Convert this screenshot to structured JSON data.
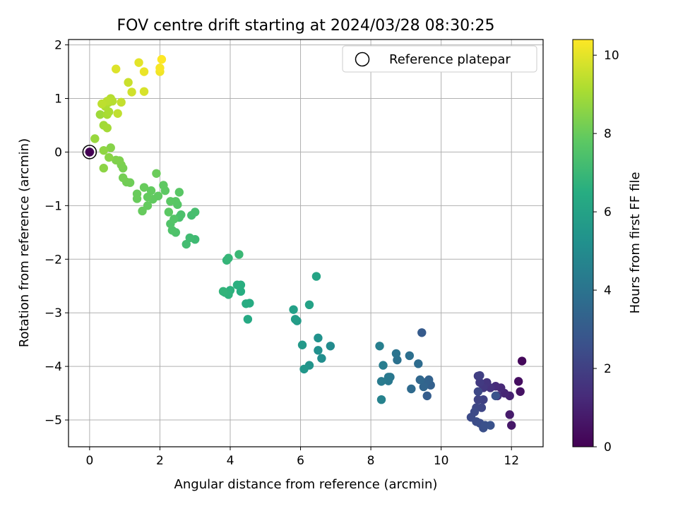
{
  "chart_data": {
    "type": "scatter",
    "title": "FOV centre drift starting at 2024/03/28 08:30:25",
    "xlabel": "Angular distance from reference (arcmin)",
    "ylabel": "Rotation from reference (arcmin)",
    "xlim": [
      -0.6,
      12.9
    ],
    "ylim": [
      -5.5,
      2.1
    ],
    "xticks": [
      0,
      2,
      4,
      6,
      8,
      10,
      12
    ],
    "yticks": [
      -5,
      -4,
      -3,
      -2,
      -1,
      0,
      1,
      2
    ],
    "grid": true,
    "legend": {
      "position": "top-right",
      "entries": [
        "Reference platepar"
      ]
    },
    "colorbar": {
      "label": "Hours from first FF file",
      "range": [
        0,
        10.4
      ],
      "ticks": [
        0,
        2,
        4,
        6,
        8,
        10
      ],
      "colormap": "viridis"
    },
    "reference_point": {
      "x": 0,
      "y": 0,
      "hours": 0
    },
    "points": [
      [
        0.0,
        0.0,
        0.0
      ],
      [
        12.3,
        -3.9,
        0.2
      ],
      [
        12.2,
        -4.28,
        0.4
      ],
      [
        12.25,
        -4.47,
        0.5
      ],
      [
        12.0,
        -5.1,
        0.7
      ],
      [
        11.95,
        -4.9,
        0.8
      ],
      [
        11.95,
        -4.55,
        1.0
      ],
      [
        11.8,
        -4.5,
        1.1
      ],
      [
        11.7,
        -4.4,
        1.2
      ],
      [
        11.55,
        -4.37,
        1.3
      ],
      [
        11.6,
        -4.55,
        1.4
      ],
      [
        11.4,
        -4.4,
        1.5
      ],
      [
        11.3,
        -4.3,
        1.6
      ],
      [
        11.2,
        -4.4,
        1.7
      ],
      [
        11.1,
        -4.3,
        1.8
      ],
      [
        11.05,
        -4.18,
        1.9
      ],
      [
        11.1,
        -4.17,
        2.0
      ],
      [
        11.2,
        -4.62,
        2.05
      ],
      [
        11.05,
        -4.62,
        2.1
      ],
      [
        11.15,
        -4.77,
        2.2
      ],
      [
        11.0,
        -4.77,
        2.25
      ],
      [
        11.05,
        -4.47,
        2.3
      ],
      [
        10.95,
        -4.85,
        2.35
      ],
      [
        10.85,
        -4.95,
        2.4
      ],
      [
        11.0,
        -5.03,
        2.45
      ],
      [
        11.1,
        -5.06,
        2.5
      ],
      [
        11.2,
        -5.15,
        2.55
      ],
      [
        11.25,
        -5.1,
        2.6
      ],
      [
        11.4,
        -5.1,
        2.65
      ],
      [
        11.55,
        -4.55,
        2.7
      ],
      [
        9.45,
        -3.37,
        3.0
      ],
      [
        9.6,
        -4.55,
        3.1
      ],
      [
        9.7,
        -4.35,
        3.2
      ],
      [
        9.65,
        -4.25,
        3.3
      ],
      [
        9.55,
        -4.3,
        3.35
      ],
      [
        9.5,
        -4.38,
        3.4
      ],
      [
        9.4,
        -4.25,
        3.5
      ],
      [
        9.15,
        -4.42,
        3.6
      ],
      [
        9.35,
        -3.95,
        3.7
      ],
      [
        9.1,
        -3.8,
        3.8
      ],
      [
        8.75,
        -3.88,
        3.9
      ],
      [
        8.72,
        -3.76,
        4.0
      ],
      [
        8.55,
        -4.2,
        4.1
      ],
      [
        8.5,
        -4.27,
        4.2
      ],
      [
        8.5,
        -4.2,
        4.25
      ],
      [
        8.3,
        -4.28,
        4.3
      ],
      [
        8.35,
        -3.98,
        4.4
      ],
      [
        8.25,
        -3.62,
        4.5
      ],
      [
        8.3,
        -4.62,
        4.6
      ],
      [
        6.85,
        -3.62,
        5.0
      ],
      [
        6.6,
        -3.85,
        5.1
      ],
      [
        6.5,
        -3.7,
        5.2
      ],
      [
        6.5,
        -3.47,
        5.3
      ],
      [
        6.25,
        -3.98,
        5.4
      ],
      [
        6.1,
        -4.05,
        5.5
      ],
      [
        6.05,
        -3.6,
        5.6
      ],
      [
        5.9,
        -3.15,
        5.7
      ],
      [
        5.85,
        -3.12,
        5.8
      ],
      [
        5.8,
        -2.94,
        5.9
      ],
      [
        6.25,
        -2.85,
        6.0
      ],
      [
        6.45,
        -2.32,
        6.1
      ],
      [
        4.5,
        -3.12,
        6.3
      ],
      [
        4.55,
        -2.82,
        6.4
      ],
      [
        4.45,
        -2.83,
        6.45
      ],
      [
        4.3,
        -2.6,
        6.5
      ],
      [
        4.3,
        -2.48,
        6.55
      ],
      [
        4.2,
        -2.48,
        6.6
      ],
      [
        4.0,
        -2.58,
        6.65
      ],
      [
        3.95,
        -2.66,
        6.7
      ],
      [
        3.85,
        -2.62,
        6.75
      ],
      [
        3.8,
        -2.6,
        6.8
      ],
      [
        3.9,
        -2.02,
        6.85
      ],
      [
        3.95,
        -1.98,
        6.9
      ],
      [
        4.25,
        -1.91,
        7.0
      ],
      [
        3.0,
        -1.63,
        7.1
      ],
      [
        2.85,
        -1.6,
        7.15
      ],
      [
        2.75,
        -1.72,
        7.2
      ],
      [
        2.9,
        -1.18,
        7.25
      ],
      [
        3.0,
        -1.12,
        7.3
      ],
      [
        2.55,
        -1.22,
        7.35
      ],
      [
        2.6,
        -1.17,
        7.4
      ],
      [
        2.45,
        -1.5,
        7.45
      ],
      [
        2.35,
        -1.46,
        7.5
      ],
      [
        2.3,
        -1.34,
        7.55
      ],
      [
        2.4,
        -1.25,
        7.6
      ],
      [
        2.5,
        -0.98,
        7.65
      ],
      [
        2.45,
        -0.92,
        7.7
      ],
      [
        2.55,
        -0.75,
        7.72
      ],
      [
        2.3,
        -0.92,
        7.75
      ],
      [
        2.25,
        -1.12,
        7.78
      ],
      [
        2.15,
        -0.72,
        7.8
      ],
      [
        2.1,
        -0.62,
        7.83
      ],
      [
        1.95,
        -0.82,
        7.86
      ],
      [
        1.8,
        -0.88,
        7.88
      ],
      [
        1.75,
        -0.72,
        7.9
      ],
      [
        1.65,
        -0.84,
        7.92
      ],
      [
        1.65,
        -1.0,
        7.94
      ],
      [
        1.5,
        -1.1,
        7.96
      ],
      [
        1.55,
        -0.66,
        7.98
      ],
      [
        1.35,
        -0.87,
        8.0
      ],
      [
        1.35,
        -0.78,
        8.02
      ],
      [
        1.9,
        -0.4,
        8.05
      ],
      [
        1.15,
        -0.57,
        8.1
      ],
      [
        1.05,
        -0.56,
        8.15
      ],
      [
        0.95,
        -0.48,
        8.2
      ],
      [
        0.95,
        -0.3,
        8.25
      ],
      [
        0.9,
        -0.24,
        8.3
      ],
      [
        0.85,
        -0.16,
        8.35
      ],
      [
        0.75,
        -0.15,
        8.4
      ],
      [
        0.6,
        0.08,
        8.5
      ],
      [
        0.55,
        -0.1,
        8.55
      ],
      [
        0.4,
        -0.3,
        8.6
      ],
      [
        0.4,
        0.03,
        8.65
      ],
      [
        0.15,
        0.25,
        8.8
      ],
      [
        0.3,
        0.7,
        8.9
      ],
      [
        0.4,
        0.5,
        8.95
      ],
      [
        0.5,
        0.45,
        9.0
      ],
      [
        0.5,
        0.7,
        9.05
      ],
      [
        0.55,
        0.75,
        9.1
      ],
      [
        0.45,
        0.85,
        9.15
      ],
      [
        0.55,
        0.93,
        9.2
      ],
      [
        0.6,
        1.0,
        9.25
      ],
      [
        0.65,
        0.95,
        9.3
      ],
      [
        0.5,
        0.95,
        9.35
      ],
      [
        0.35,
        0.9,
        9.4
      ],
      [
        0.8,
        0.72,
        9.45
      ],
      [
        0.9,
        0.93,
        9.5
      ],
      [
        1.1,
        1.3,
        9.6
      ],
      [
        1.2,
        1.12,
        9.7
      ],
      [
        1.55,
        1.13,
        9.8
      ],
      [
        0.75,
        1.55,
        9.9
      ],
      [
        1.4,
        1.67,
        10.0
      ],
      [
        1.55,
        1.5,
        10.1
      ],
      [
        2.0,
        1.5,
        10.2
      ],
      [
        2.0,
        1.57,
        10.3
      ],
      [
        2.05,
        1.73,
        10.4
      ]
    ]
  }
}
